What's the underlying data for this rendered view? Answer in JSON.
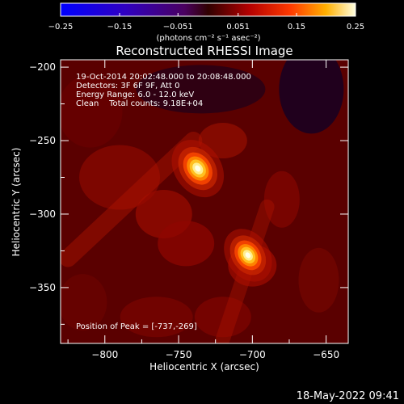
{
  "chart_data": {
    "type": "heatmap",
    "title": "Reconstructed RHESSI Image",
    "xlabel": "Heliocentric X (arcsec)",
    "ylabel": "Heliocentric Y (arcsec)",
    "xlim": [
      -830,
      -635
    ],
    "ylim": [
      -388,
      -195
    ],
    "x_ticks": [
      -800,
      -750,
      -700,
      -650
    ],
    "x_tick_labels": [
      "−800",
      "−750",
      "−700",
      "−650"
    ],
    "y_ticks": [
      -200,
      -250,
      -300,
      -350
    ],
    "y_tick_labels": [
      "−200",
      "−250",
      "−300",
      "−350"
    ],
    "colorbar": {
      "range": [
        -0.25,
        0.25
      ],
      "ticks": [
        -0.25,
        -0.15,
        -0.051,
        0.051,
        0.15,
        0.25
      ],
      "tick_labels": [
        "−0.25",
        "−0.15",
        "−0.051",
        "0.051",
        "0.15",
        "0.25"
      ],
      "unit_label": "(photons cm⁻² s⁻¹ asec⁻²)"
    },
    "sources": [
      {
        "x": -737,
        "y": -269,
        "peak": 0.25
      },
      {
        "x": -703,
        "y": -328,
        "peak": 0.23
      }
    ],
    "annotations": {
      "time": "19-Oct-2014 20:02:48.000 to 20:08:48.000",
      "detectors": "Detectors: 3F 6F 9F, Att 0",
      "energy": "Energy Range: 6.0 - 12.0 keV",
      "clean": "Clean    Total counts: 9.18E+04",
      "peak": "Position of Peak = [-737,-269]"
    },
    "footer_date": "18-May-2022 09:41"
  }
}
